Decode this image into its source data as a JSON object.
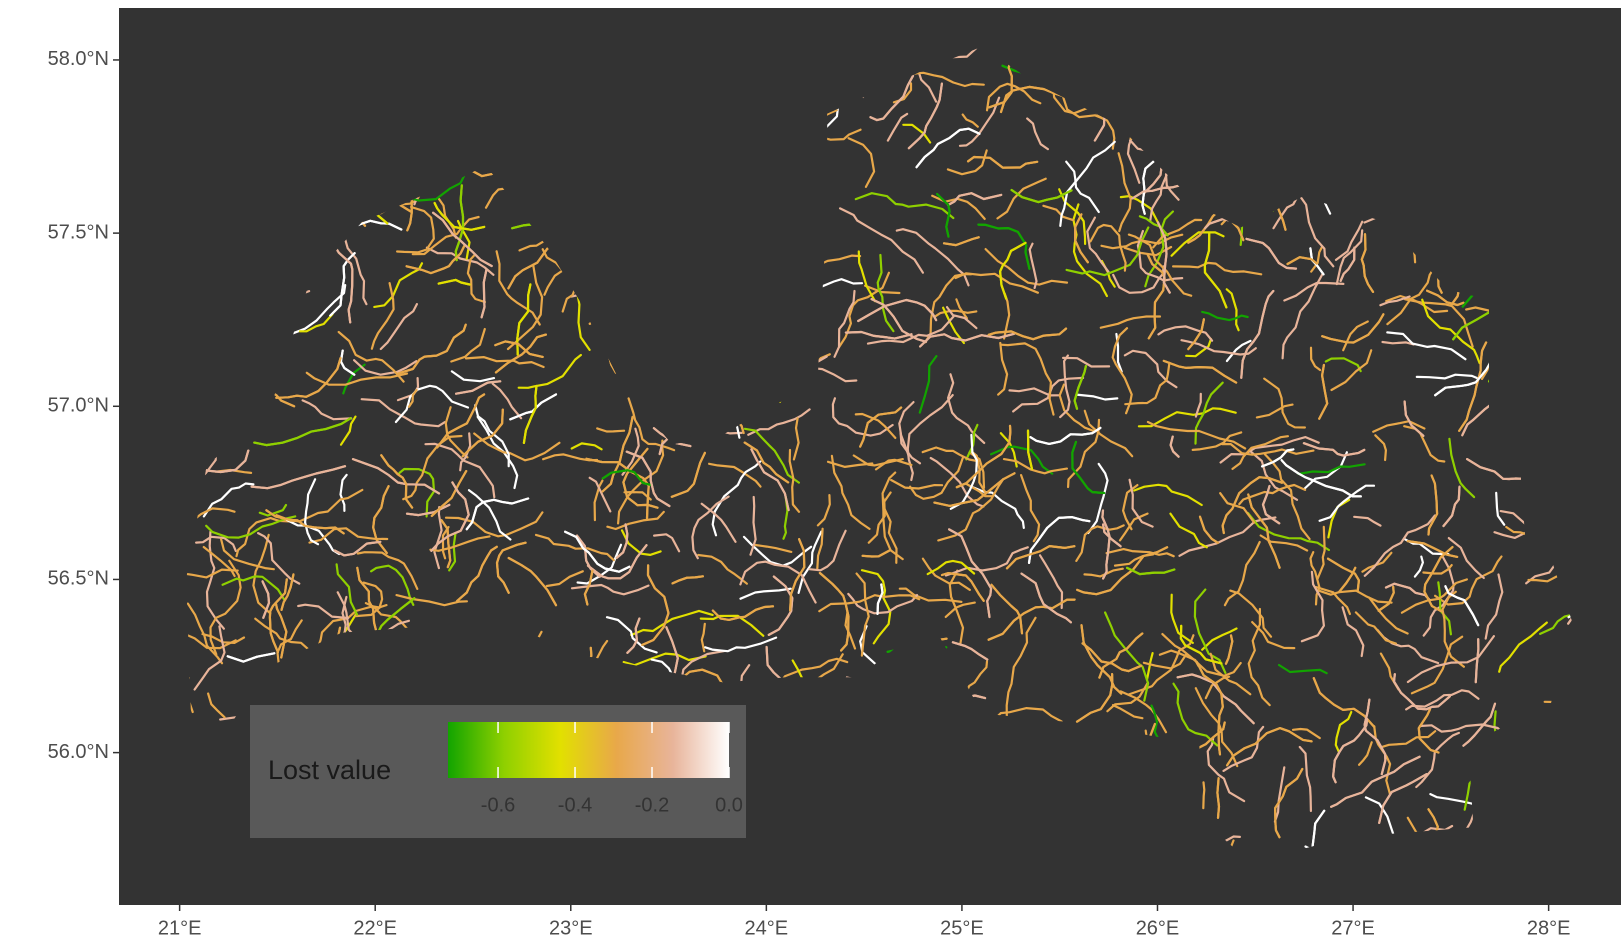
{
  "map": {
    "xlim": [
      20.69,
      28.37
    ],
    "ylim": [
      55.56,
      58.15
    ],
    "xticks": [
      {
        "value": 21,
        "label": "21°E"
      },
      {
        "value": 22,
        "label": "22°E"
      },
      {
        "value": 23,
        "label": "23°E"
      },
      {
        "value": 24,
        "label": "24°E"
      },
      {
        "value": 25,
        "label": "25°E"
      },
      {
        "value": 26,
        "label": "26°E"
      },
      {
        "value": 27,
        "label": "27°E"
      },
      {
        "value": 28,
        "label": "28°E"
      }
    ],
    "yticks": [
      {
        "value": 56,
        "label": "56.0°N"
      },
      {
        "value": 56.5,
        "label": "56.5°N"
      },
      {
        "value": 57,
        "label": "57.0°N"
      },
      {
        "value": 57.5,
        "label": "57.5°N"
      },
      {
        "value": 58,
        "label": "58.0°N"
      }
    ],
    "legend": {
      "title": "Lost value",
      "limits": [
        -0.73,
        0
      ],
      "ticks": [
        -0.6,
        -0.4,
        -0.2,
        {
          "value": 0,
          "label": "0.0"
        }
      ],
      "colors": [
        "#12a400",
        "#8fd000",
        "#e2e000",
        "#e8a84a",
        "#e8b49a",
        "#ffffff"
      ]
    }
  }
}
